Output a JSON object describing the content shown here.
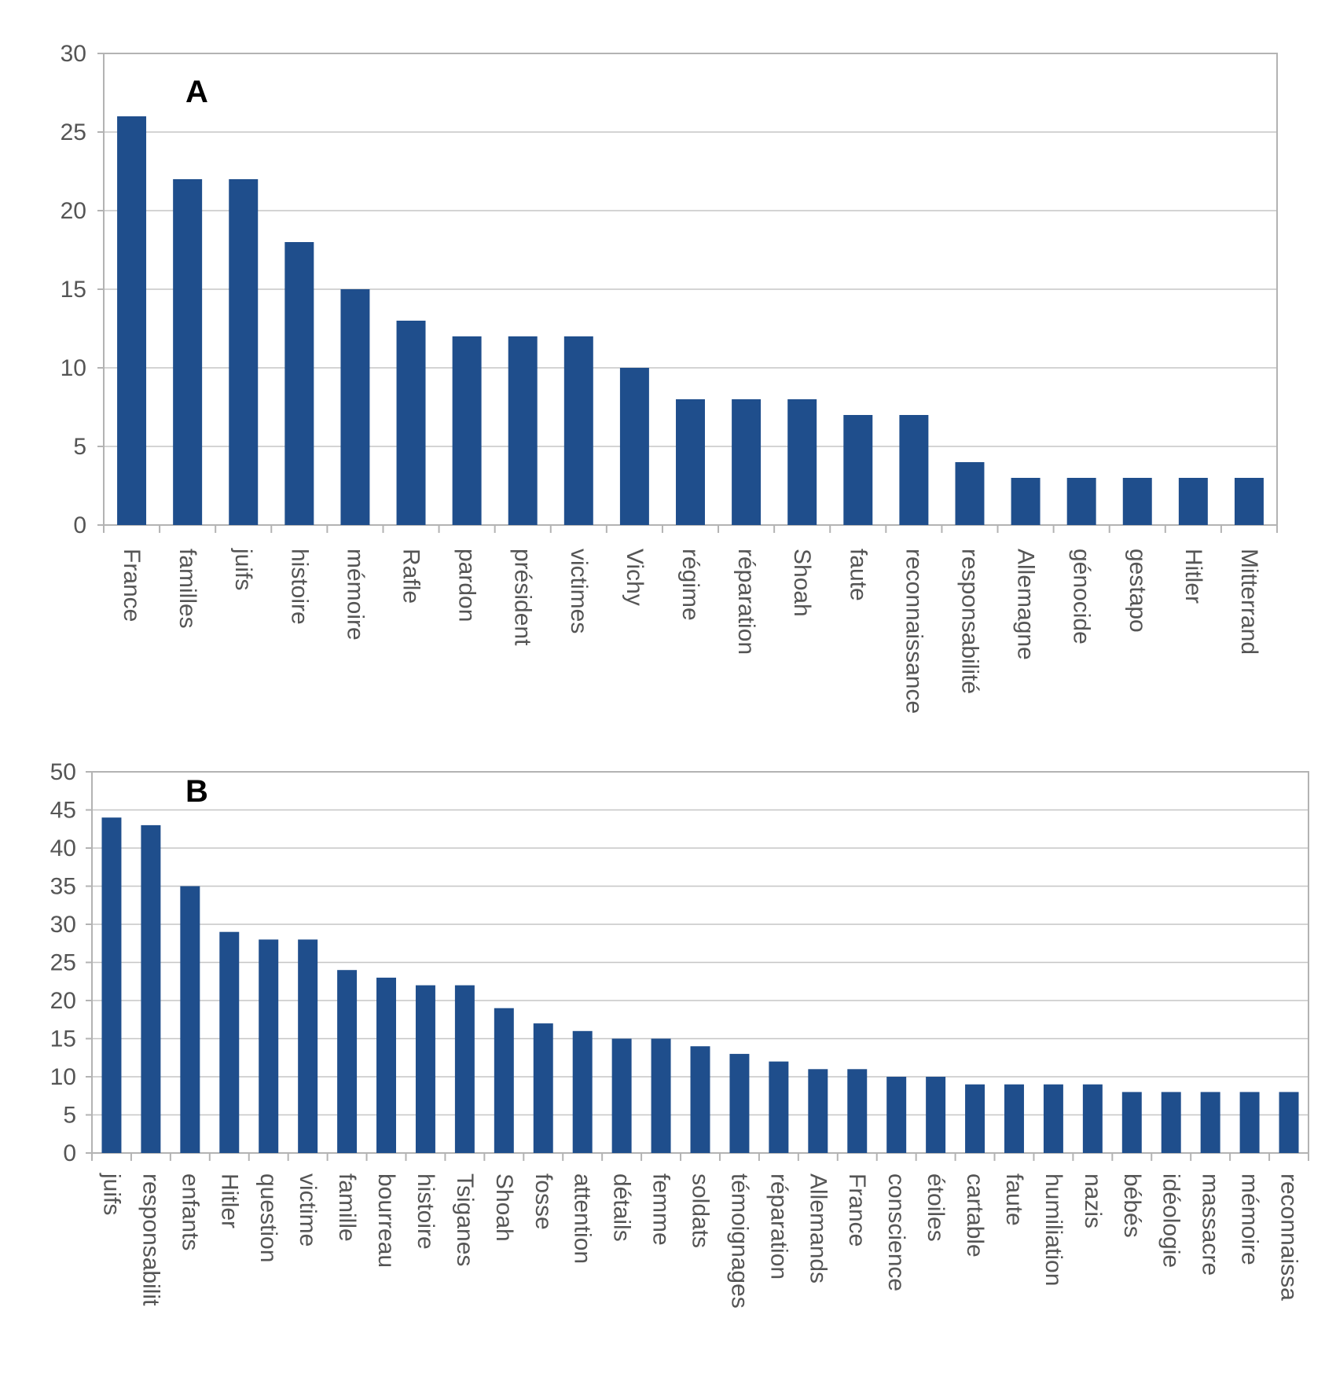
{
  "chart_data": [
    {
      "type": "bar",
      "panel_label": "A",
      "ylim": [
        0,
        30
      ],
      "yticks": [
        0,
        5,
        10,
        15,
        20,
        25,
        30
      ],
      "grid": true,
      "bar_color": "#1f4e8c",
      "categories": [
        "France",
        "familles",
        "juifs",
        "histoire",
        "mémoire",
        "Rafle",
        "pardon",
        "président",
        "victimes",
        "Vichy",
        "régime",
        "réparation",
        "Shoah",
        "faute",
        "reconnaissance",
        "responsabilité",
        "Allemagne",
        "génocide",
        "gestapo",
        "Hitler",
        "Mitterrand"
      ],
      "values": [
        26,
        22,
        22,
        18,
        15,
        13,
        12,
        12,
        12,
        10,
        8,
        8,
        8,
        7,
        7,
        4,
        3,
        3,
        3,
        3,
        3
      ]
    },
    {
      "type": "bar",
      "panel_label": "B",
      "ylim": [
        0,
        50
      ],
      "yticks": [
        0,
        5,
        10,
        15,
        20,
        25,
        30,
        35,
        40,
        45,
        50
      ],
      "grid": true,
      "bar_color": "#1f4e8c",
      "categories": [
        "juifs",
        "responsabilit",
        "enfants",
        "Hitler",
        "question",
        "victime",
        "famille",
        "bourreau",
        "histoire",
        "Tsiganes",
        "Shoah",
        "fosse",
        "attention",
        "détails",
        "femme",
        "soldats",
        "témoignages",
        "réparation",
        "Allemands",
        "France",
        "conscience",
        "étoiles",
        "cartable",
        "faute",
        "humiliation",
        "nazis",
        "bébés",
        "idéologie",
        "massacre",
        "mémoire",
        "reconnaissa"
      ],
      "values": [
        44,
        43,
        35,
        29,
        28,
        28,
        24,
        23,
        22,
        22,
        19,
        17,
        16,
        15,
        15,
        14,
        13,
        12,
        11,
        11,
        10,
        10,
        9,
        9,
        9,
        9,
        8,
        8,
        8,
        8,
        8
      ]
    }
  ]
}
